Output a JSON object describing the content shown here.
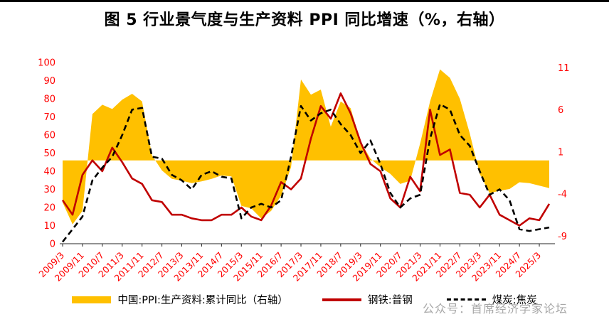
{
  "title": "图 5 行业景气度与生产资料 PPI 同比增速（%，右轴）",
  "watermark": "公众号：首席经济学家论坛",
  "legend": [
    {
      "label": "中国:PPI:生产资料:累计同比（右轴）",
      "type": "area",
      "color": "#FFC000"
    },
    {
      "label": "钢铁:普钢",
      "type": "line",
      "color": "#C00000"
    },
    {
      "label": "煤炭:焦炭",
      "type": "dashed",
      "color": "#000000"
    }
  ],
  "chart_data": {
    "type": "line",
    "title": "图 5 行业景气度与生产资料 PPI 同比增速（%，右轴）",
    "x_tick_labels": [
      "2009/3",
      "2009/11",
      "2010/7",
      "2011/3",
      "2011/11",
      "2012/7",
      "2013/3",
      "2013/11",
      "2014/7",
      "2015/3",
      "2015/11",
      "2016/7",
      "2017/3",
      "2017/11",
      "2018/7",
      "2019/3",
      "2019/11",
      "2020/7",
      "2021/3",
      "2021/11",
      "2022/7",
      "2023/3",
      "2023/11",
      "2024/7",
      "2025/3"
    ],
    "x_tick_interval_months": 8,
    "x_months_per_point": 4,
    "x_total_months": 196,
    "grid": false,
    "legend_position": "bottom",
    "left_axis": {
      "min": 0,
      "max": 100,
      "step": 10,
      "color": "#FF0000"
    },
    "right_axis": {
      "ticks": [
        11,
        6,
        1,
        -4,
        -9
      ],
      "color": "#FF0000",
      "zero_at_left": 46,
      "left_units_per_right_unit": 4.65
    },
    "series": [
      {
        "name": "中国:PPI:生产资料:累计同比（右轴）",
        "axis": "right",
        "style": "area",
        "color": "#FFC000",
        "values": [
          -5.0,
          -7.6,
          -6.0,
          5.5,
          6.6,
          6.1,
          7.2,
          7.9,
          7.0,
          0.6,
          -1.2,
          -2.2,
          -2.4,
          -2.7,
          -2.5,
          -2.2,
          -1.8,
          -1.9,
          -5.4,
          -5.7,
          -6.9,
          -6.0,
          -4.2,
          -0.8,
          9.6,
          7.8,
          8.4,
          4.0,
          7.0,
          6.2,
          2.2,
          0.2,
          -0.8,
          -1.6,
          -2.8,
          -2.4,
          2.0,
          7.0,
          10.8,
          9.8,
          7.3,
          3.2,
          -1.6,
          -3.9,
          -3.6,
          -3.4,
          -2.6,
          -2.7,
          -3.0,
          -3.3
        ]
      },
      {
        "name": "钢铁:普钢",
        "axis": "left",
        "style": "solid",
        "color": "#C00000",
        "values": [
          24,
          16,
          38,
          46,
          40,
          53,
          45,
          36,
          33,
          24,
          23,
          16,
          16,
          14,
          13,
          13,
          16,
          16,
          20,
          15,
          13,
          21,
          34,
          30,
          36,
          58,
          76,
          69,
          83,
          72,
          56,
          44,
          40,
          25,
          20,
          37,
          29,
          74,
          49,
          52,
          28,
          27,
          20,
          27,
          16,
          13,
          10,
          14,
          13,
          22
        ]
      },
      {
        "name": "煤炭:焦炭",
        "axis": "left",
        "style": "dashed",
        "color": "#000000",
        "values": [
          1,
          8,
          15,
          35,
          42,
          48,
          60,
          74,
          75,
          48,
          47,
          38,
          35,
          30,
          38,
          40,
          37,
          36,
          14,
          20,
          22,
          20,
          24,
          48,
          76,
          68,
          72,
          74,
          66,
          60,
          50,
          57,
          44,
          28,
          20,
          25,
          27,
          58,
          77,
          74,
          60,
          54,
          40,
          27,
          30,
          24,
          8,
          7,
          8,
          9
        ]
      }
    ]
  }
}
